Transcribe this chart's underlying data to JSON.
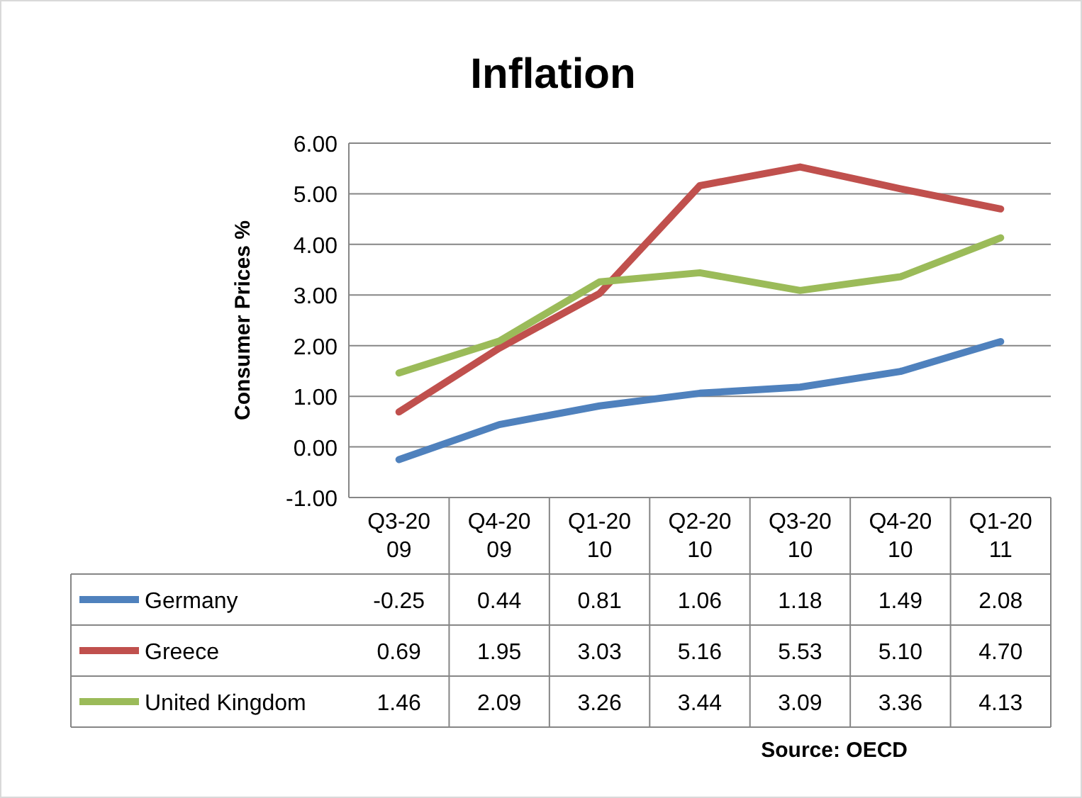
{
  "chart_data": {
    "type": "line",
    "title": "Inflation",
    "ylabel": "Consumer Prices %",
    "categories": [
      "Q3-2009",
      "Q4-2009",
      "Q1-2010",
      "Q2-2010",
      "Q3-2010",
      "Q4-2010",
      "Q1-2011"
    ],
    "series": [
      {
        "name": "Germany",
        "color": "#4f81bd",
        "values": [
          -0.25,
          0.44,
          0.81,
          1.06,
          1.18,
          1.49,
          2.08
        ],
        "value_labels": [
          "-0.25",
          "0.44",
          "0.81",
          "1.06",
          "1.18",
          "1.49",
          "2.08"
        ]
      },
      {
        "name": "Greece",
        "color": "#c0504d",
        "values": [
          0.69,
          1.95,
          3.03,
          5.16,
          5.53,
          5.1,
          4.7
        ],
        "value_labels": [
          "0.69",
          "1.95",
          "3.03",
          "5.16",
          "5.53",
          "5.10",
          "4.70"
        ]
      },
      {
        "name": "United Kingdom",
        "color": "#9bbb59",
        "values": [
          1.46,
          2.09,
          3.26,
          3.44,
          3.09,
          3.36,
          4.13
        ],
        "value_labels": [
          "1.46",
          "2.09",
          "3.26",
          "3.44",
          "3.09",
          "3.36",
          "4.13"
        ]
      }
    ],
    "ylim": [
      -1,
      6
    ],
    "yticks": [
      {
        "value": -1,
        "label": "-1.00"
      },
      {
        "value": 0,
        "label": "0.00"
      },
      {
        "value": 1,
        "label": "1.00"
      },
      {
        "value": 2,
        "label": "2.00"
      },
      {
        "value": 3,
        "label": "3.00"
      },
      {
        "value": 4,
        "label": "4.00"
      },
      {
        "value": 5,
        "label": "5.00"
      },
      {
        "value": 6,
        "label": "6.00"
      }
    ],
    "grid": "y",
    "legend": "bottom",
    "marker": "none",
    "line_style": "solid",
    "annotations": [
      "Source: OECD"
    ]
  }
}
